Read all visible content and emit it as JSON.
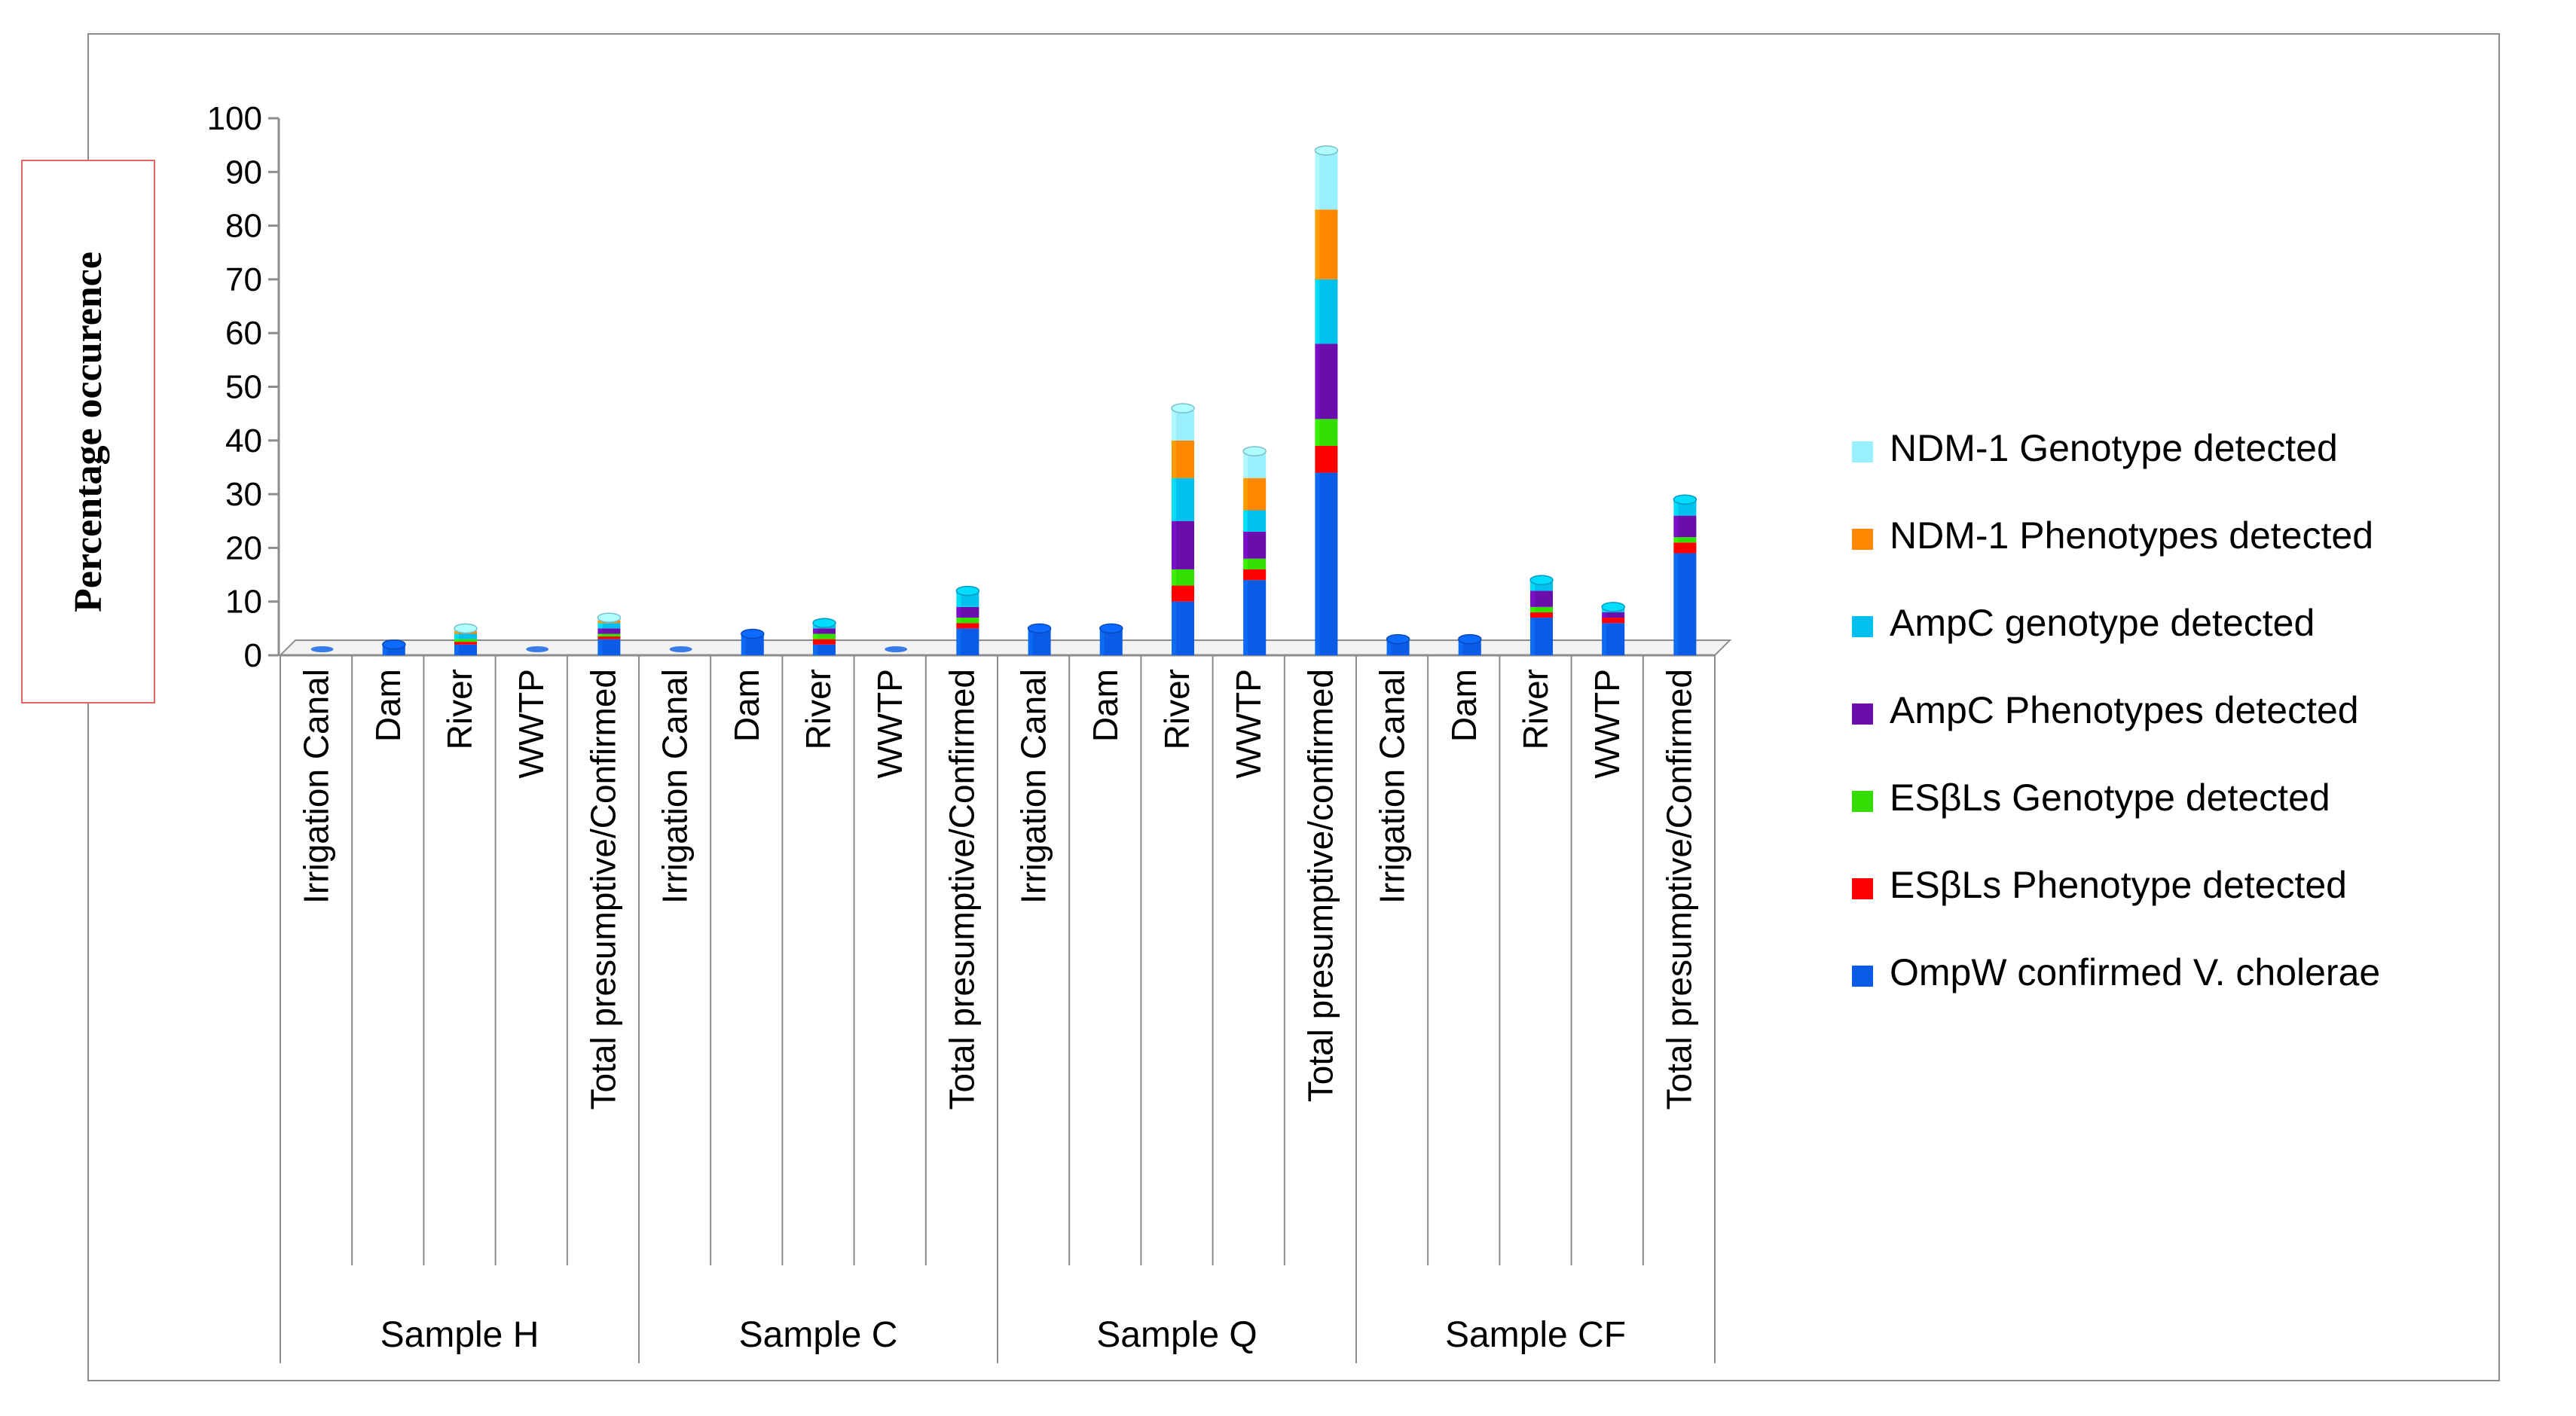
{
  "chart_data": {
    "type": "bar",
    "stacked": true,
    "ylabel": "Percentage occurence",
    "ylim": [
      0,
      100
    ],
    "yticks": [
      0,
      10,
      20,
      30,
      40,
      50,
      60,
      70,
      80,
      90,
      100
    ],
    "legend_position": "right",
    "groups": [
      {
        "name": "Sample H",
        "categories": [
          "Irrigation Canal",
          "Dam",
          "River",
          "WWTP",
          "Total presumptive/Confirmed"
        ]
      },
      {
        "name": "Sample C",
        "categories": [
          "Irrigation Canal",
          "Dam",
          "River",
          "WWTP",
          "Total presumptive/Confirmed"
        ]
      },
      {
        "name": "Sample Q",
        "categories": [
          "Irrigation Canal",
          "Dam",
          "River",
          "WWTP",
          "Total presumptive/confirmed"
        ]
      },
      {
        "name": "Sample CF",
        "categories": [
          "Irrigation Canal",
          "Dam",
          "River",
          "WWTP",
          "Total presumptive/Confirmed"
        ]
      }
    ],
    "series": [
      {
        "name": "OmpW confirmed V. cholerae",
        "color": "#0a5ce6",
        "values": [
          0,
          2,
          2,
          0,
          3,
          0,
          4,
          2,
          0,
          5,
          5,
          5,
          10,
          14,
          34,
          3,
          3,
          7,
          6,
          19
        ]
      },
      {
        "name": "ESβLs Phenotype detected",
        "color": "#ff0000",
        "values": [
          0,
          0,
          0.5,
          0,
          0.5,
          0,
          0,
          1,
          0,
          1,
          0,
          0,
          3,
          2,
          5,
          0,
          0,
          1,
          1,
          2
        ]
      },
      {
        "name": "ESβLs Genotype detected",
        "color": "#33dd00",
        "values": [
          0,
          0,
          0.5,
          0,
          0.5,
          0,
          0,
          1,
          0,
          1,
          0,
          0,
          3,
          2,
          5,
          0,
          0,
          1,
          0,
          1
        ]
      },
      {
        "name": "AmpC Phenotypes detected",
        "color": "#6a0dad",
        "values": [
          0,
          0,
          0,
          0,
          1,
          0,
          0,
          1,
          0,
          2,
          0,
          0,
          9,
          5,
          14,
          0,
          0,
          3,
          1,
          4
        ]
      },
      {
        "name": "AmpC genotype detected",
        "color": "#00c0ee",
        "values": [
          0,
          0,
          1,
          0,
          1,
          0,
          0,
          1,
          0,
          3,
          0,
          0,
          8,
          4,
          12,
          0,
          0,
          2,
          1,
          3
        ]
      },
      {
        "name": "NDM-1 Phenotypes detected",
        "color": "#ff8800",
        "values": [
          0,
          0,
          0.5,
          0,
          0.5,
          0,
          0,
          0,
          0,
          0,
          0,
          0,
          7,
          6,
          13,
          0,
          0,
          0,
          0,
          0
        ]
      },
      {
        "name": "NDM-1 Genotype detected",
        "color": "#99eeff",
        "values": [
          0,
          0,
          0.5,
          0,
          0.5,
          0,
          0,
          0,
          0,
          0,
          0,
          0,
          6,
          5,
          11,
          0,
          0,
          0,
          0,
          0
        ]
      }
    ]
  }
}
